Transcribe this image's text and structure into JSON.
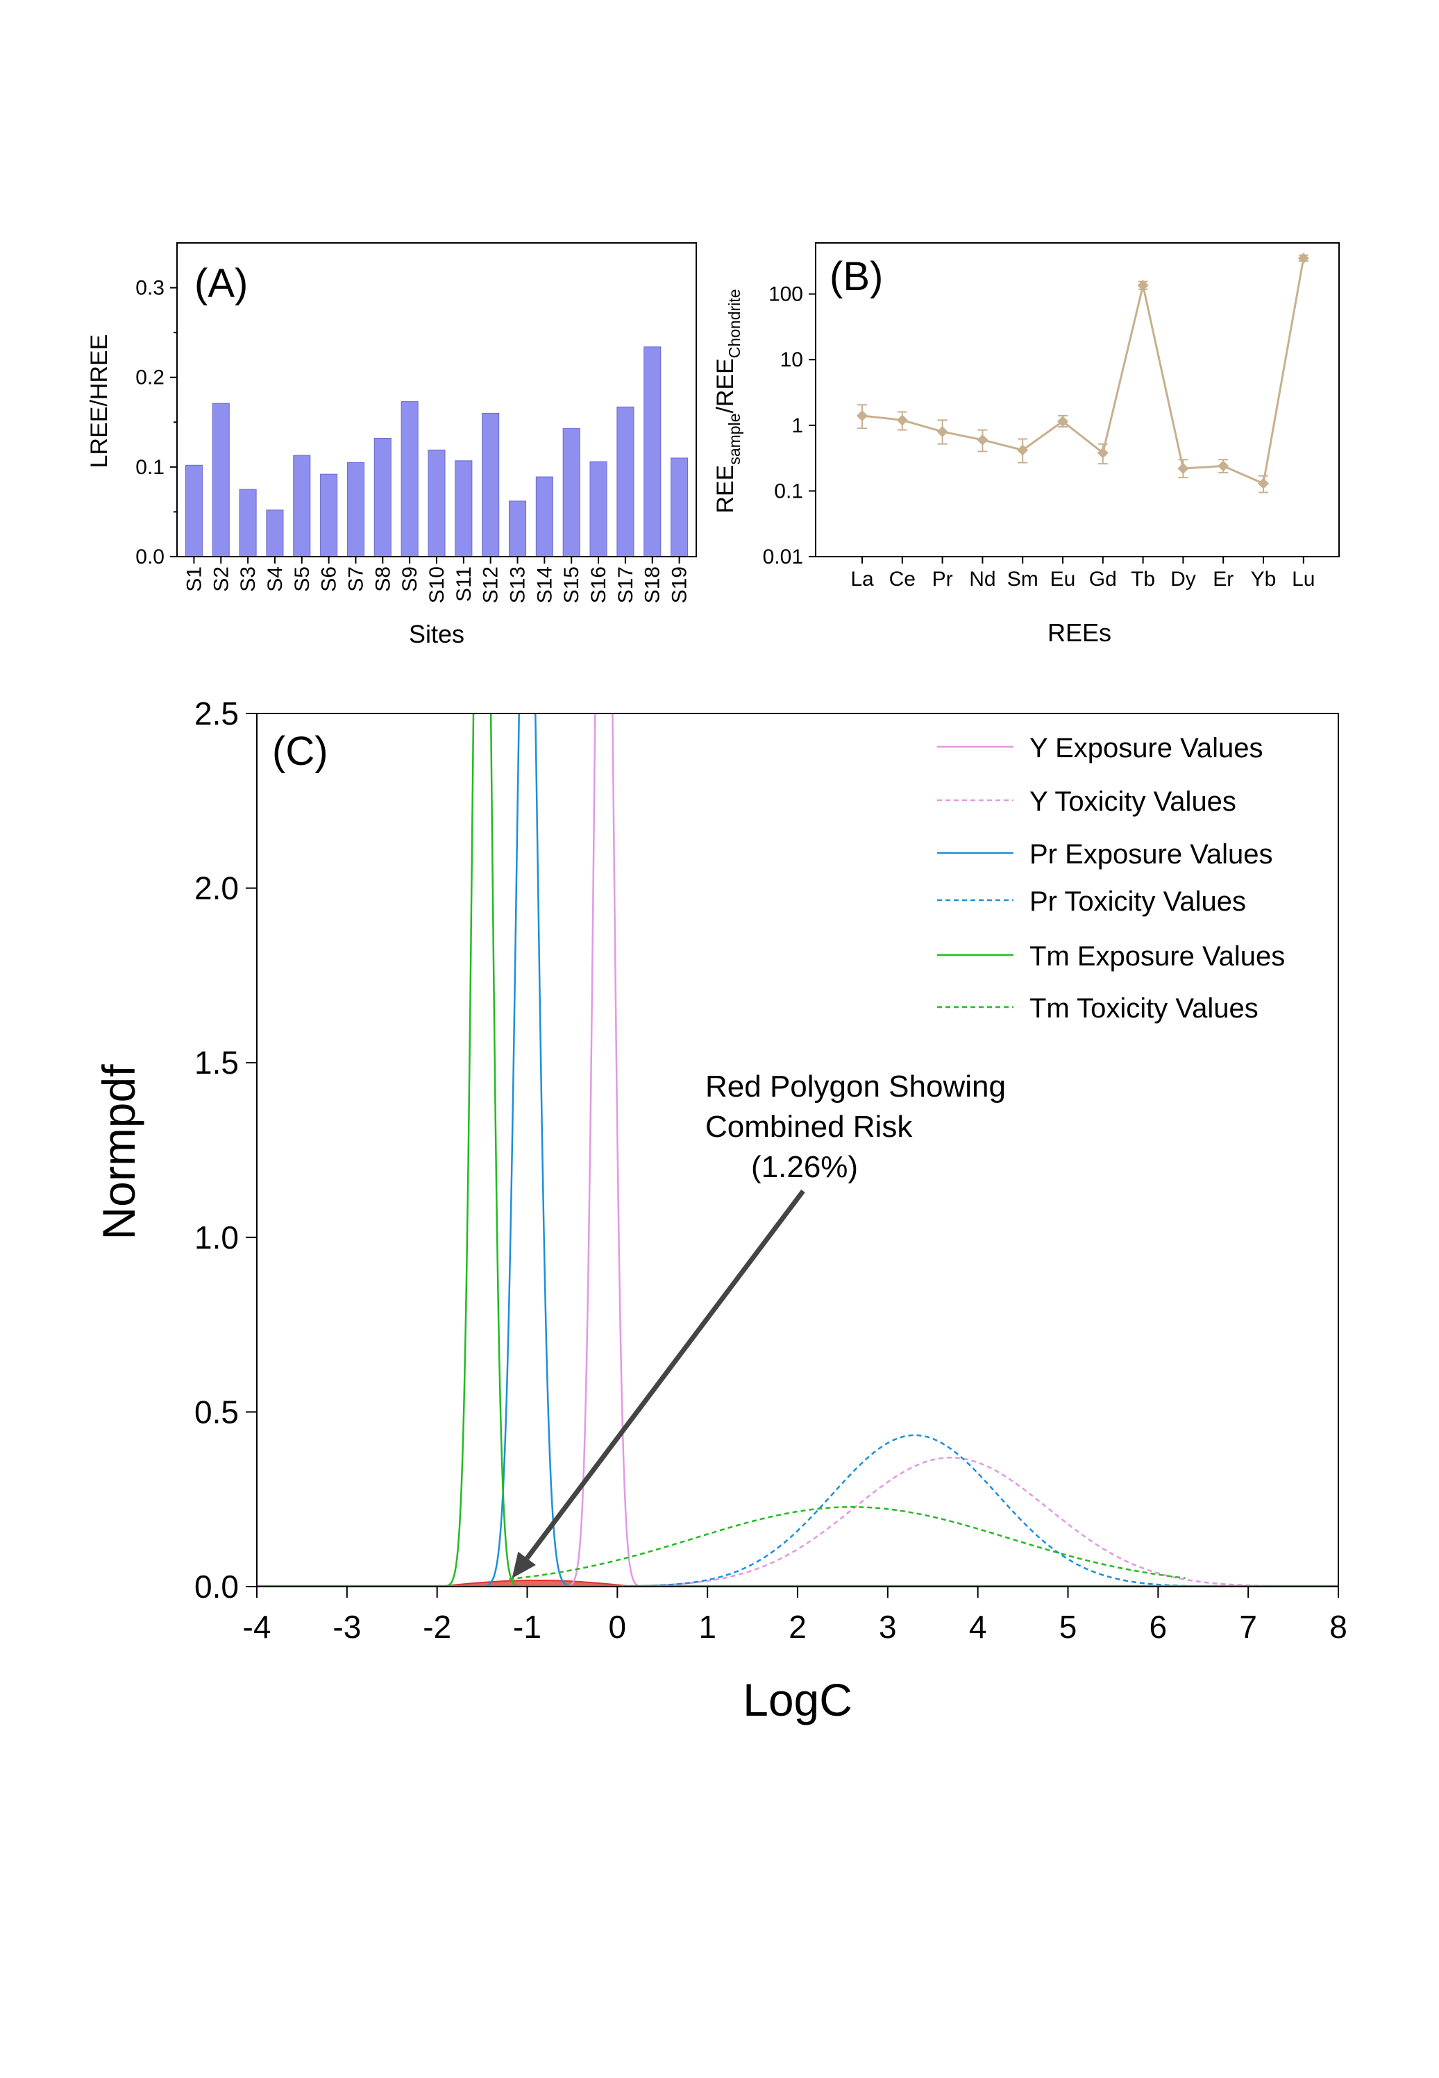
{
  "chart_data": [
    {
      "panel": "(A)",
      "type": "bar",
      "xlabel": "Sites",
      "ylabel": "LREE/HREE",
      "ylim": [
        0.0,
        0.35
      ],
      "yticks": [
        "0.0",
        "0.1",
        "0.2",
        "0.3"
      ],
      "yticks_values": [
        0.0,
        0.1,
        0.2,
        0.3
      ],
      "categories": [
        "S1",
        "S2",
        "S3",
        "S4",
        "S5",
        "S6",
        "S7",
        "S8",
        "S9",
        "S10",
        "S11",
        "S12",
        "S13",
        "S14",
        "S15",
        "S16",
        "S17",
        "S18",
        "S19"
      ],
      "values": [
        0.102,
        0.171,
        0.075,
        0.052,
        0.113,
        0.092,
        0.105,
        0.132,
        0.173,
        0.119,
        0.107,
        0.16,
        0.062,
        0.089,
        0.143,
        0.106,
        0.167,
        0.234,
        0.11
      ],
      "bar_color": "#8f8fef",
      "bar_stroke": "#6a6ad0",
      "grid": false
    },
    {
      "panel": "(B)",
      "type": "line",
      "xlabel": "REEs",
      "ylabel_parts": [
        "REE",
        "sample",
        "/REE",
        "Chondrite"
      ],
      "yscale": "log",
      "ylim": [
        0.01,
        600
      ],
      "yticks": [
        "0.01",
        "0.1",
        "1",
        "10",
        "100"
      ],
      "yticks_values": [
        0.01,
        0.1,
        1,
        10,
        100
      ],
      "categories": [
        "La",
        "Ce",
        "Pr",
        "Nd",
        "Sm",
        "Eu",
        "Gd",
        "Tb",
        "Dy",
        "Er",
        "Yb",
        "Lu"
      ],
      "values": [
        1.4,
        1.2,
        0.8,
        0.6,
        0.42,
        1.15,
        0.38,
        135,
        0.22,
        0.24,
        0.13,
        350
      ],
      "errors_lower": [
        0.9,
        0.85,
        0.52,
        0.4,
        0.27,
        0.95,
        0.26,
        118,
        0.16,
        0.19,
        0.095,
        318
      ],
      "errors_upper": [
        2.05,
        1.6,
        1.2,
        0.85,
        0.62,
        1.4,
        0.52,
        155,
        0.3,
        0.3,
        0.17,
        390
      ],
      "color": "#c8b08e",
      "grid": false
    },
    {
      "panel": "(C)",
      "type": "line",
      "xlabel": "LogC",
      "ylabel": "Normpdf",
      "xlim": [
        -4,
        8
      ],
      "ylim": [
        0.0,
        2.5
      ],
      "xticks": [
        "-4",
        "-3",
        "-2",
        "-1",
        "0",
        "1",
        "2",
        "3",
        "4",
        "5",
        "6",
        "7",
        "8"
      ],
      "xticks_values": [
        -4,
        -3,
        -2,
        -1,
        0,
        1,
        2,
        3,
        4,
        5,
        6,
        7,
        8
      ],
      "yticks": [
        "0.0",
        "0.5",
        "1.0",
        "1.5",
        "2.0",
        "2.5"
      ],
      "yticks_values": [
        0.0,
        0.5,
        1.0,
        1.5,
        2.0,
        2.5
      ],
      "legend_position": "top-right",
      "series": [
        {
          "name": "Y Exposure Values",
          "color": "#e399e3",
          "dash": false,
          "mean": -0.15,
          "sd": 0.1,
          "range": [
            -4,
            8
          ]
        },
        {
          "name": "Y Toxicity Values",
          "color": "#e399e3",
          "dash": true,
          "mean": 3.7,
          "sd": 1.08,
          "range": [
            -0.4,
            8
          ]
        },
        {
          "name": "Pr Exposure Values",
          "color": "#1c8fdb",
          "dash": false,
          "mean": -1.0,
          "sd": 0.12,
          "range": [
            -4,
            8
          ]
        },
        {
          "name": "Pr Toxicity Values",
          "color": "#1c8fdb",
          "dash": true,
          "mean": 3.3,
          "sd": 0.92,
          "range": [
            0.2,
            6.3
          ]
        },
        {
          "name": "Tm Exposure Values",
          "color": "#22bb22",
          "dash": false,
          "mean": -1.5,
          "sd": 0.1,
          "range": [
            -4,
            8
          ]
        },
        {
          "name": "Tm Toxicity Values",
          "color": "#22bb22",
          "dash": true,
          "mean": 2.6,
          "sd": 1.75,
          "range": [
            -1.2,
            6.3
          ]
        }
      ],
      "annotation": {
        "lines": [
          "Red Polygon Showing",
          "Combined Risk",
          "(1.26%)"
        ],
        "arrow_target": [
          -1.2,
          0.0
        ],
        "polygon_range": [
          -2.0,
          0.2
        ],
        "polygon_color": "#e0312f"
      },
      "grid": false
    }
  ]
}
